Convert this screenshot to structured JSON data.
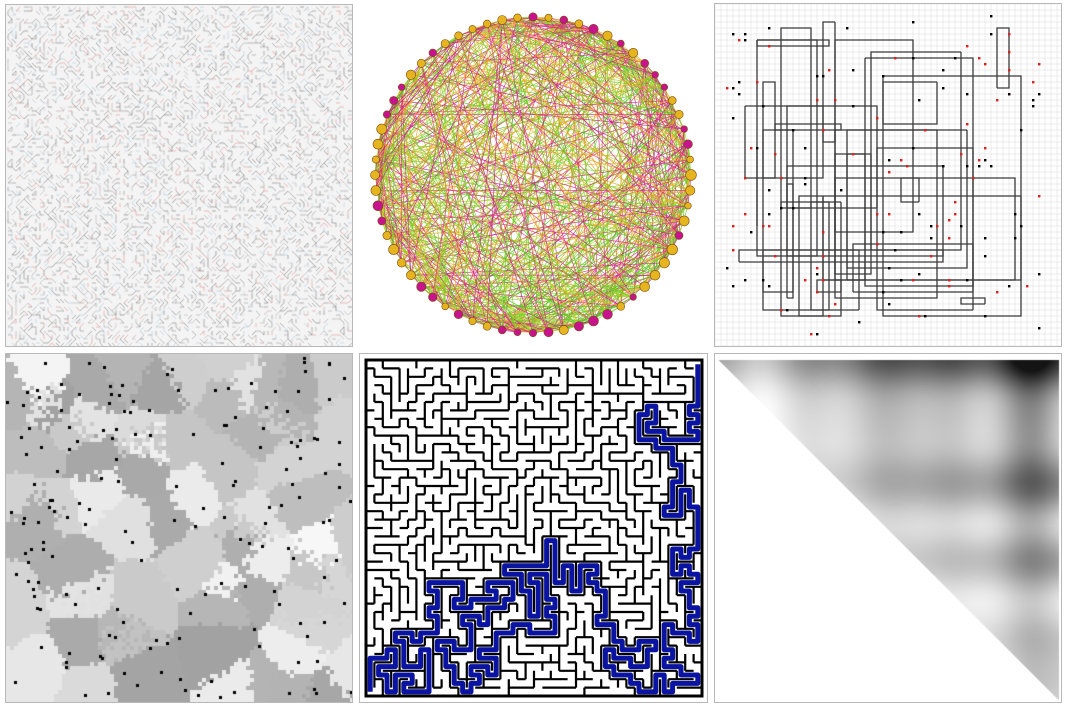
{
  "figure": {
    "panels": [
      {
        "id": "grid-wiring",
        "type": "dense-grid-network",
        "colors": {
          "line": "#5a5a5a",
          "accent_red": "#d84a4a",
          "accent_blue": "#7ab0d8",
          "background": "#f4f4f4"
        }
      },
      {
        "id": "complete-graph",
        "type": "circular-complete-graph",
        "colors": {
          "edges": [
            "#e0287a",
            "#7ccc22",
            "#f0a020",
            "#c81e8c",
            "#52c81e",
            "#b4d21e"
          ],
          "node_fill": "#e6b41e",
          "node_alt": "#c8148c"
        }
      },
      {
        "id": "routing",
        "type": "grid-rectilinear-routing",
        "colors": {
          "wires": "#3a3a3a",
          "pins": "#e01e1e",
          "dots": "#000000",
          "grid": "#d2d2d2"
        }
      },
      {
        "id": "region-map",
        "type": "grayscale-region-partition",
        "colors": {
          "light": "#f4f4f4",
          "dark": "#a0a0a0",
          "dots": "#000000"
        }
      },
      {
        "id": "maze",
        "type": "maze-with-solution-path",
        "colors": {
          "walls": "#000000",
          "path": "#0a14a0",
          "background": "#ffffff"
        }
      },
      {
        "id": "triangle-map",
        "type": "upper-triangular-heatmap",
        "colors": {
          "max": "#111111",
          "min": "#ffffff"
        }
      }
    ]
  }
}
